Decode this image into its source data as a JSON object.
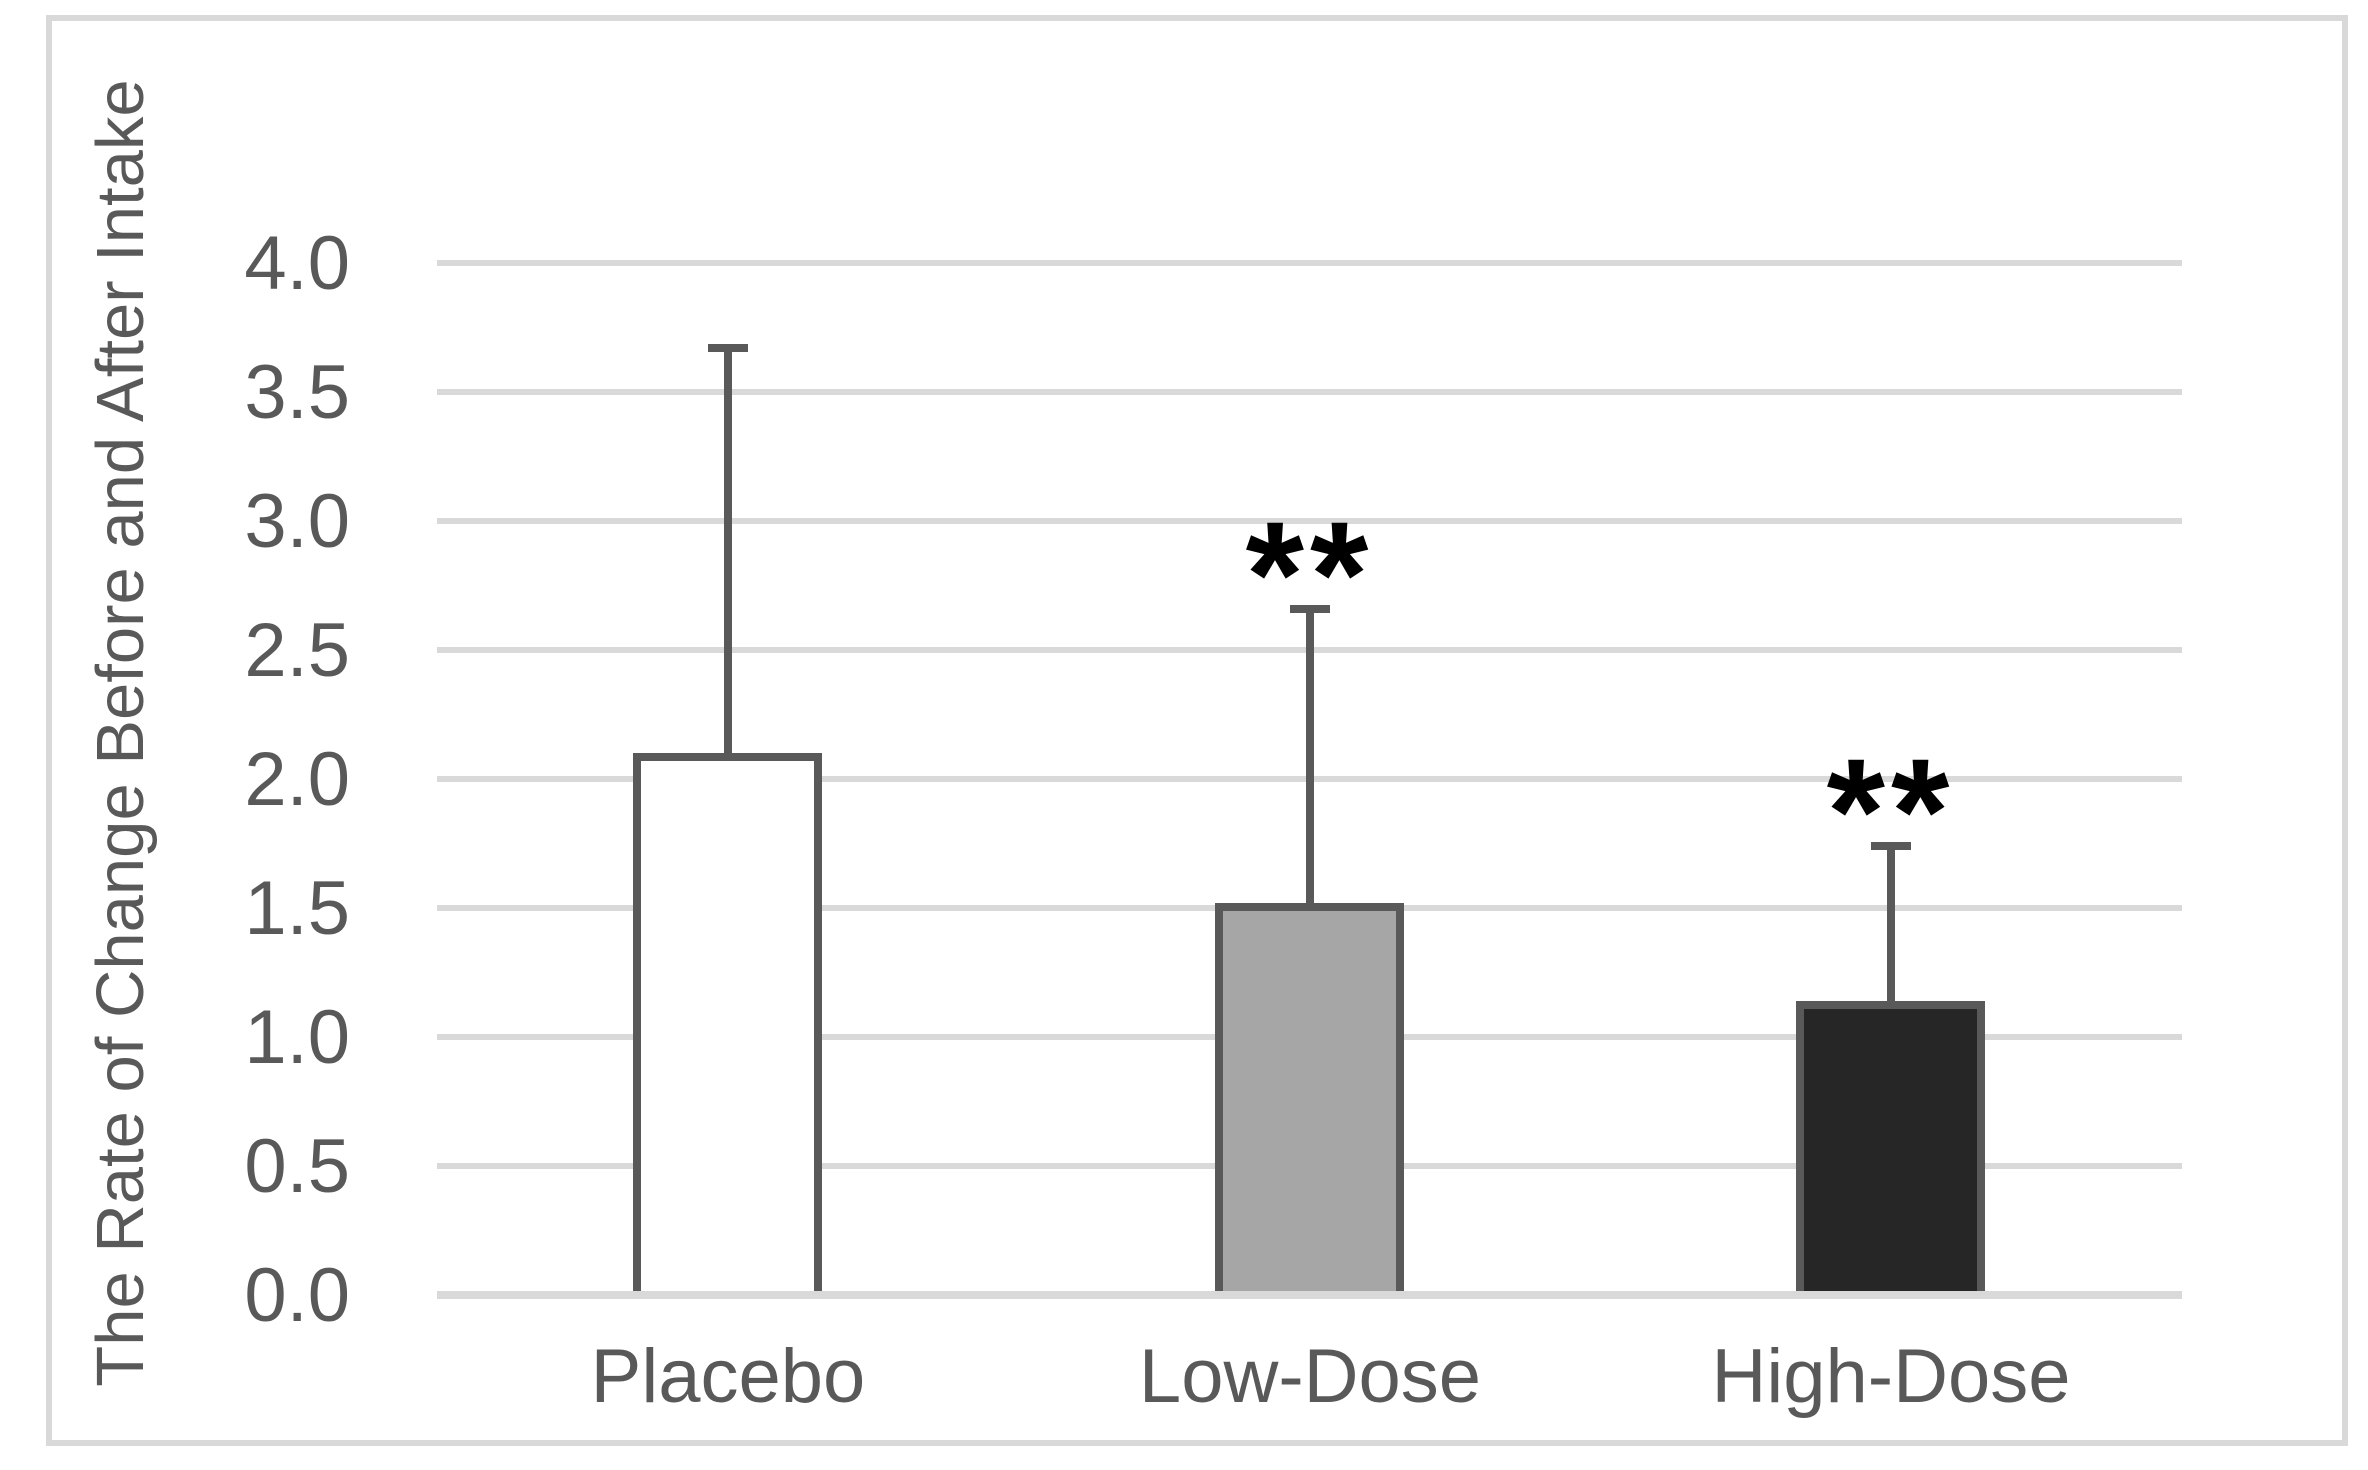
{
  "figure": {
    "background_color": "#FFFFFF",
    "border_color": "#D9D9D9"
  },
  "chart_data": {
    "type": "bar",
    "title": "",
    "xlabel": "",
    "ylabel": "The Rate of Change Before and After Intake",
    "categories": [
      "Placebo",
      "Low-Dose",
      "High-Dose"
    ],
    "values": [
      2.1,
      1.52,
      1.14
    ],
    "error_top": [
      3.67,
      2.66,
      1.74
    ],
    "error_upper_whisker": [
      1.57,
      1.14,
      0.6
    ],
    "significance_markers": [
      "",
      "**",
      "**"
    ],
    "ylim": [
      0,
      4
    ],
    "ytick_step": 0.5,
    "ytick_labels": [
      "0.0",
      "0.5",
      "1.0",
      "1.5",
      "2.0",
      "2.5",
      "3.0",
      "3.5",
      "4.0"
    ],
    "grid": true,
    "legend": "none",
    "bar_fill_colors": [
      "#FFFFFF",
      "#A6A6A6",
      "#262626"
    ],
    "bar_border_color": "#595959",
    "error_bar_color": "#595959",
    "gridline_color": "#D9D9D9",
    "axis_text_color": "#595959",
    "marker_color": "#000000"
  }
}
